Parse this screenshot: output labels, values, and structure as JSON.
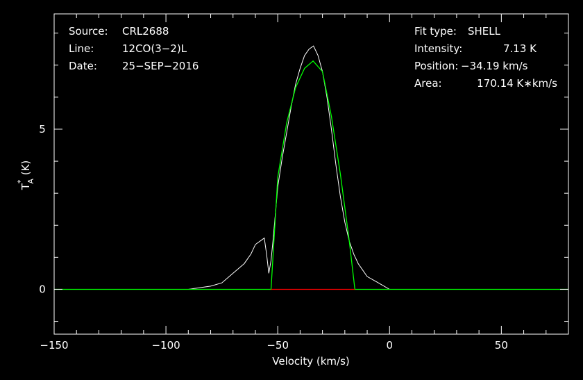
{
  "chart_data": {
    "type": "line",
    "xlabel": "Velocity (km/s)",
    "ylabel_main": "T",
    "ylabel_sub": "A",
    "ylabel_sup": "*",
    "ylabel_unit": " (K)",
    "xlim": [
      -150,
      80
    ],
    "ylim": [
      -1.4,
      8.6
    ],
    "x_ticks": [
      -150,
      -100,
      -50,
      0,
      50
    ],
    "x_tick_labels": [
      "−150",
      "−100",
      "−50",
      "0",
      "50"
    ],
    "y_ticks": [
      0,
      5
    ],
    "y_tick_labels": [
      "0",
      "5"
    ],
    "grid": false,
    "header": {
      "source_label": "Source:",
      "source_value": "CRL2688",
      "line_label": "Line:",
      "line_value": "12CO(3−2)L",
      "date_label": "Date:",
      "date_value": "25−SEP−2016"
    },
    "fit": {
      "type_label": "Fit type:",
      "type_value": "SHELL",
      "intensity_label": "Intensity:",
      "intensity_value": "7.13 K",
      "position_label": "Position:",
      "position_value": "−34.19 km/s",
      "area_label": "Area:",
      "area_value": "170.14 K∗km/s"
    },
    "series": [
      {
        "color": "#ffffff",
        "x": [
          -150,
          -140,
          -130,
          -120,
          -110,
          -100,
          -90,
          -80,
          -75,
          -70,
          -65,
          -62,
          -60,
          -58,
          -56,
          -55,
          -54,
          -53,
          -52,
          -50,
          -48,
          -46,
          -44,
          -42,
          -40,
          -38,
          -36,
          -34,
          -32,
          -30,
          -28,
          -26,
          -24,
          -22,
          -20,
          -18,
          -16,
          -14,
          -12,
          -10,
          -5,
          0,
          10,
          20,
          30,
          40,
          50,
          60,
          70,
          80
        ],
        "y": [
          0,
          0,
          0,
          0,
          0,
          0,
          0,
          0.1,
          0.2,
          0.5,
          0.8,
          1.1,
          1.4,
          1.5,
          1.6,
          1.1,
          0.5,
          0.9,
          1.6,
          3.2,
          4.1,
          4.9,
          5.7,
          6.4,
          6.9,
          7.3,
          7.5,
          7.6,
          7.3,
          6.8,
          6.0,
          5.0,
          3.9,
          2.9,
          2.1,
          1.5,
          1.1,
          0.8,
          0.6,
          0.4,
          0.2,
          0,
          0,
          0,
          0,
          0,
          0,
          0,
          0,
          0
        ]
      },
      {
        "name": "SHELL fit",
        "color": "#00ff00",
        "x": [
          -150,
          -53,
          -50,
          -46,
          -42,
          -38,
          -34.19,
          -30,
          -26,
          -22,
          -18,
          -15.5,
          80
        ],
        "y": [
          0,
          0,
          3.5,
          5.2,
          6.3,
          6.9,
          7.13,
          6.8,
          5.4,
          3.6,
          1.5,
          0,
          0
        ]
      },
      {
        "name": "fit range baseline",
        "color": "#ff0000",
        "x": [
          -53,
          -15.5
        ],
        "y": [
          0,
          0
        ]
      }
    ]
  }
}
